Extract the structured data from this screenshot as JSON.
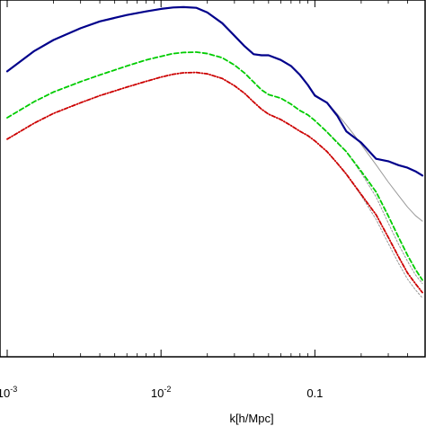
{
  "chart_data": {
    "type": "line",
    "title": "",
    "xlabel": "k[h/Mpc]",
    "ylabel": "",
    "x_scale": "log",
    "xlim": [
      0.001,
      0.5
    ],
    "ylim": [
      0.0,
      1.0
    ],
    "grid": false,
    "x_ticks": [
      {
        "value": 0.001,
        "label": "10",
        "exponent": "-3"
      },
      {
        "value": 0.01,
        "label": "10",
        "exponent": "-2"
      },
      {
        "value": 0.1,
        "label": "0.1",
        "exponent": ""
      }
    ],
    "series": [
      {
        "color": "#00008b",
        "dash": "solid",
        "width": 2.2,
        "x": [
          0.001,
          0.0015,
          0.002,
          0.003,
          0.004,
          0.006,
          0.008,
          0.01,
          0.012,
          0.014,
          0.017,
          0.02,
          0.025,
          0.03,
          0.035,
          0.04,
          0.045,
          0.05,
          0.06,
          0.07,
          0.08,
          0.09,
          0.1,
          0.12,
          0.14,
          0.16,
          0.2,
          0.25,
          0.3,
          0.35,
          0.4,
          0.45,
          0.5
        ],
        "y": [
          0.8,
          0.857,
          0.888,
          0.921,
          0.94,
          0.958,
          0.968,
          0.975,
          0.979,
          0.98,
          0.978,
          0.965,
          0.935,
          0.9,
          0.87,
          0.848,
          0.845,
          0.845,
          0.832,
          0.815,
          0.79,
          0.762,
          0.732,
          0.712,
          0.675,
          0.632,
          0.6,
          0.555,
          0.548,
          0.537,
          0.53,
          0.52,
          0.508
        ]
      },
      {
        "color": "#00cc00",
        "dash": "5,3",
        "width": 1.8,
        "x": [
          0.001,
          0.0015,
          0.002,
          0.003,
          0.004,
          0.006,
          0.008,
          0.01,
          0.012,
          0.014,
          0.017,
          0.02,
          0.025,
          0.03,
          0.035,
          0.04,
          0.045,
          0.05,
          0.06,
          0.07,
          0.08,
          0.09,
          0.1,
          0.12,
          0.14,
          0.16,
          0.2,
          0.25,
          0.3,
          0.35,
          0.4,
          0.45,
          0.5
        ],
        "y": [
          0.67,
          0.715,
          0.742,
          0.771,
          0.79,
          0.815,
          0.832,
          0.842,
          0.85,
          0.853,
          0.854,
          0.85,
          0.838,
          0.818,
          0.795,
          0.77,
          0.748,
          0.735,
          0.725,
          0.708,
          0.69,
          0.678,
          0.662,
          0.63,
          0.6,
          0.575,
          0.52,
          0.462,
          0.395,
          0.335,
          0.285,
          0.245,
          0.215
        ]
      },
      {
        "color": "#cc0000",
        "dash": "4,2,1,2",
        "width": 1.8,
        "x": [
          0.001,
          0.0015,
          0.002,
          0.003,
          0.004,
          0.006,
          0.008,
          0.01,
          0.012,
          0.014,
          0.017,
          0.02,
          0.025,
          0.03,
          0.035,
          0.04,
          0.045,
          0.05,
          0.06,
          0.07,
          0.08,
          0.09,
          0.1,
          0.12,
          0.14,
          0.16,
          0.2,
          0.25,
          0.3,
          0.35,
          0.4,
          0.45,
          0.5
        ],
        "y": [
          0.61,
          0.655,
          0.682,
          0.712,
          0.732,
          0.756,
          0.772,
          0.784,
          0.792,
          0.796,
          0.797,
          0.793,
          0.78,
          0.76,
          0.738,
          0.714,
          0.694,
          0.68,
          0.665,
          0.648,
          0.632,
          0.62,
          0.605,
          0.575,
          0.542,
          0.512,
          0.455,
          0.398,
          0.335,
          0.28,
          0.235,
          0.205,
          0.18
        ]
      },
      {
        "color": "#999999",
        "dash": "solid",
        "width": 1.0,
        "x": [
          0.1,
          0.12,
          0.14,
          0.16,
          0.18,
          0.2,
          0.25,
          0.3,
          0.35,
          0.4,
          0.45,
          0.5
        ],
        "y": [
          0.735,
          0.712,
          0.68,
          0.65,
          0.622,
          0.595,
          0.538,
          0.49,
          0.452,
          0.42,
          0.396,
          0.38
        ]
      },
      {
        "color": "#999999",
        "dash": "2,2",
        "width": 1.0,
        "x": [
          0.12,
          0.14,
          0.16,
          0.2,
          0.25,
          0.3,
          0.35,
          0.4,
          0.45,
          0.5
        ],
        "y": [
          0.63,
          0.602,
          0.575,
          0.515,
          0.448,
          0.375,
          0.315,
          0.268,
          0.23,
          0.205
        ]
      },
      {
        "color": "#999999",
        "dash": "2,2",
        "width": 1.0,
        "x": [
          0.12,
          0.14,
          0.16,
          0.2,
          0.25,
          0.3,
          0.35,
          0.4,
          0.45,
          0.5
        ],
        "y": [
          0.575,
          0.542,
          0.512,
          0.452,
          0.385,
          0.318,
          0.262,
          0.218,
          0.188,
          0.165
        ]
      }
    ]
  }
}
